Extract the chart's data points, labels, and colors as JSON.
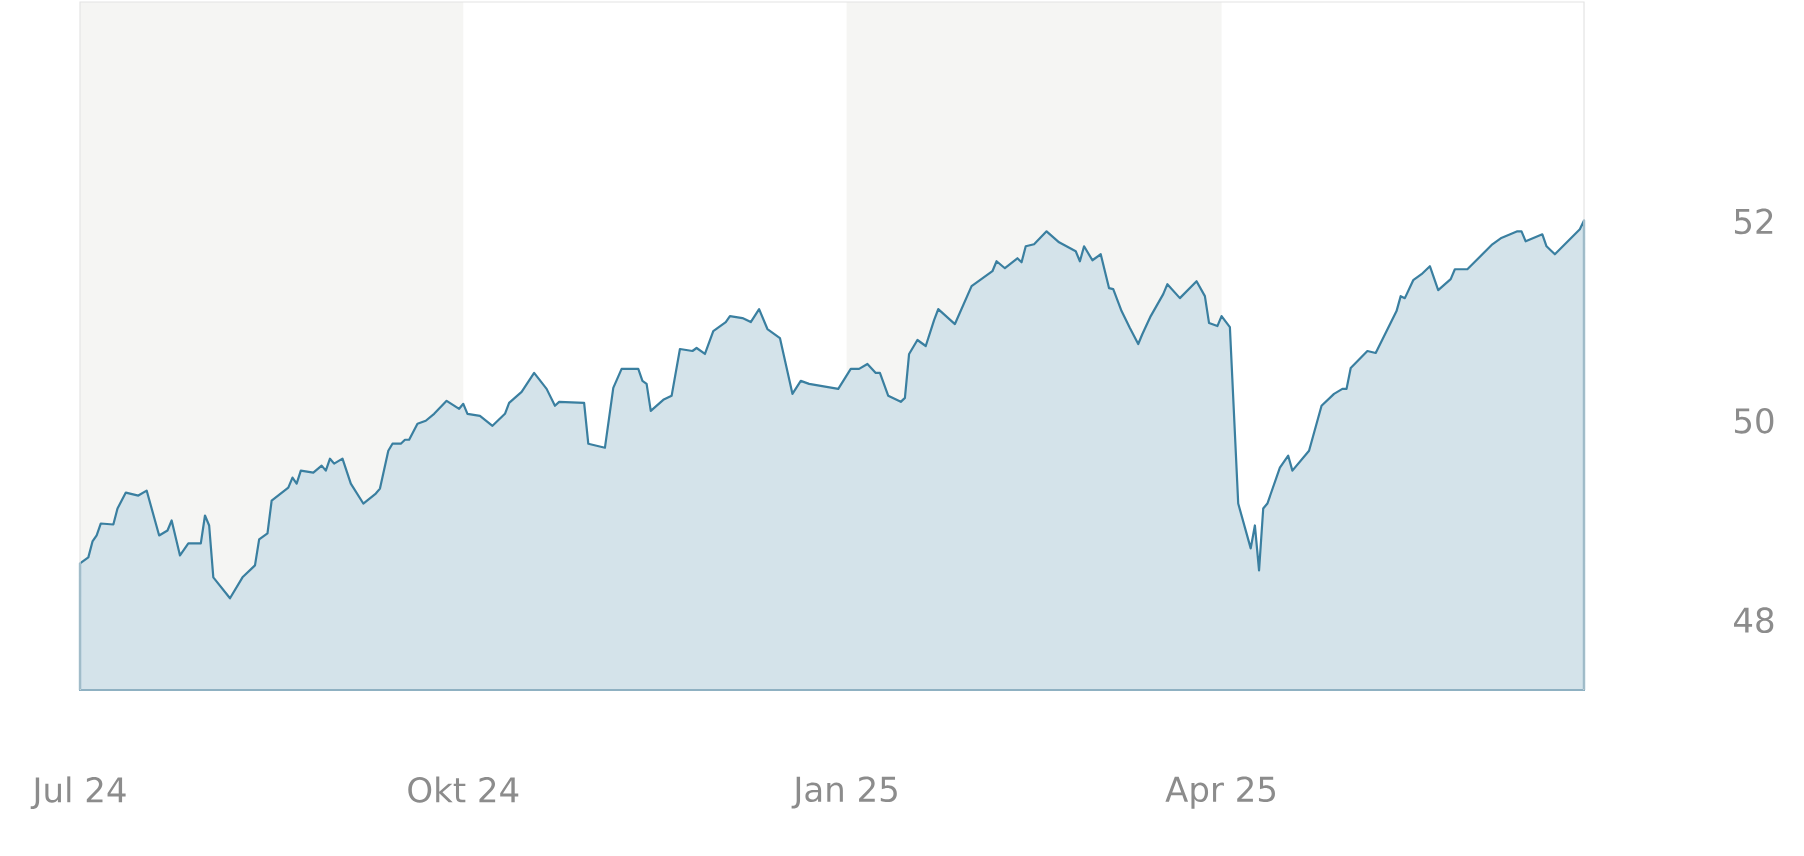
{
  "chart_data": {
    "type": "area",
    "color": "#3a7fa0",
    "x": [
      "2024-07-01",
      "2024-07-03",
      "2024-07-04",
      "2024-07-05",
      "2024-07-06",
      "2024-07-09",
      "2024-07-10",
      "2024-07-12",
      "2024-07-15",
      "2024-07-17",
      "2024-07-20",
      "2024-07-22",
      "2024-07-23",
      "2024-07-25",
      "2024-07-27",
      "2024-07-30",
      "2024-07-31",
      "2024-08-01",
      "2024-08-02",
      "2024-08-06",
      "2024-08-09",
      "2024-08-12",
      "2024-08-13",
      "2024-08-15",
      "2024-08-16",
      "2024-08-20",
      "2024-08-21",
      "2024-08-22",
      "2024-08-23",
      "2024-08-26",
      "2024-08-28",
      "2024-08-29",
      "2024-08-30",
      "2024-08-31",
      "2024-09-02",
      "2024-09-04",
      "2024-09-07",
      "2024-09-10",
      "2024-09-11",
      "2024-09-13",
      "2024-09-14",
      "2024-09-16",
      "2024-09-17",
      "2024-09-18",
      "2024-09-20",
      "2024-09-22",
      "2024-09-24",
      "2024-09-27",
      "2024-09-30",
      "2024-10-01",
      "2024-10-02",
      "2024-10-05",
      "2024-10-08",
      "2024-10-11",
      "2024-10-12",
      "2024-10-15",
      "2024-10-18",
      "2024-10-21",
      "2024-10-23",
      "2024-10-24",
      "2024-10-30",
      "2024-10-31",
      "2024-11-04",
      "2024-11-06",
      "2024-11-08",
      "2024-11-12",
      "2024-11-13",
      "2024-11-14",
      "2024-11-15",
      "2024-11-18",
      "2024-11-20",
      "2024-11-22",
      "2024-11-25",
      "2024-11-26",
      "2024-11-28",
      "2024-11-30",
      "2024-12-03",
      "2024-12-04",
      "2024-12-07",
      "2024-12-09",
      "2024-12-11",
      "2024-12-13",
      "2024-12-16",
      "2024-12-19",
      "2024-12-21",
      "2024-12-23",
      "2024-12-30",
      "2025-01-02",
      "2025-01-04",
      "2025-01-06",
      "2025-01-08",
      "2025-01-09",
      "2025-01-11",
      "2025-01-14",
      "2025-01-15",
      "2025-01-16",
      "2025-01-18",
      "2025-01-20",
      "2025-01-22",
      "2025-01-23",
      "2025-01-27",
      "2025-01-31",
      "2025-02-05",
      "2025-02-06",
      "2025-02-08",
      "2025-02-11",
      "2025-02-12",
      "2025-02-13",
      "2025-02-15",
      "2025-02-18",
      "2025-02-21",
      "2025-02-25",
      "2025-02-26",
      "2025-02-27",
      "2025-03-01",
      "2025-03-03",
      "2025-03-05",
      "2025-03-06",
      "2025-03-08",
      "2025-03-10",
      "2025-03-12",
      "2025-03-13",
      "2025-03-15",
      "2025-03-18",
      "2025-03-19",
      "2025-03-22",
      "2025-03-26",
      "2025-03-28",
      "2025-03-29",
      "2025-03-31",
      "2025-04-01",
      "2025-04-03",
      "2025-04-05",
      "2025-04-08",
      "2025-04-09",
      "2025-04-10",
      "2025-04-11",
      "2025-04-12",
      "2025-04-15",
      "2025-04-17",
      "2025-04-18",
      "2025-04-22",
      "2025-04-25",
      "2025-04-28",
      "2025-04-30",
      "2025-05-01",
      "2025-05-02",
      "2025-05-06",
      "2025-05-08",
      "2025-05-13",
      "2025-05-14",
      "2025-05-15",
      "2025-05-17",
      "2025-05-19",
      "2025-05-21",
      "2025-05-23",
      "2025-05-26",
      "2025-05-27",
      "2025-05-30",
      "2025-06-05",
      "2025-06-07",
      "2025-06-11",
      "2025-06-12",
      "2025-06-13",
      "2025-06-17",
      "2025-06-18",
      "2025-06-20",
      "2025-06-26",
      "2025-06-27"
    ],
    "values": [
      48.57,
      48.63,
      48.79,
      48.85,
      48.97,
      48.96,
      49.12,
      49.28,
      49.25,
      49.3,
      48.85,
      48.9,
      49.0,
      48.65,
      48.77,
      48.77,
      49.05,
      48.95,
      48.43,
      48.22,
      48.43,
      48.55,
      48.81,
      48.87,
      49.2,
      49.33,
      49.43,
      49.37,
      49.5,
      49.48,
      49.55,
      49.5,
      49.62,
      49.57,
      49.62,
      49.37,
      49.17,
      49.27,
      49.32,
      49.7,
      49.77,
      49.77,
      49.81,
      49.81,
      49.97,
      50.0,
      50.07,
      50.2,
      50.12,
      50.17,
      50.07,
      50.05,
      49.95,
      50.07,
      50.18,
      50.29,
      50.48,
      50.32,
      50.15,
      50.19,
      50.18,
      49.77,
      49.73,
      50.33,
      50.52,
      50.52,
      50.4,
      50.37,
      50.1,
      50.21,
      50.25,
      50.72,
      50.7,
      50.73,
      50.67,
      50.9,
      50.99,
      51.05,
      51.03,
      50.99,
      51.12,
      50.92,
      50.83,
      50.27,
      50.4,
      50.37,
      50.32,
      50.52,
      50.52,
      50.57,
      50.48,
      50.48,
      50.25,
      50.19,
      50.23,
      50.67,
      50.81,
      50.75,
      51.01,
      51.12,
      50.97,
      51.35,
      51.5,
      51.6,
      51.53,
      51.63,
      51.59,
      51.75,
      51.77,
      51.9,
      51.79,
      51.7,
      51.6,
      51.75,
      51.61,
      51.67,
      51.33,
      51.32,
      51.1,
      50.93,
      50.77,
      50.87,
      51.05,
      51.27,
      51.37,
      51.23,
      51.4,
      51.25,
      50.98,
      50.95,
      51.05,
      50.94,
      49.17,
      48.72,
      48.95,
      48.5,
      49.12,
      49.17,
      49.53,
      49.65,
      49.5,
      49.7,
      50.15,
      50.27,
      50.32,
      50.32,
      50.53,
      50.7,
      50.68,
      51.1,
      51.25,
      51.23,
      51.41,
      51.47,
      51.55,
      51.31,
      51.42,
      51.52,
      51.52,
      51.77,
      51.83,
      51.9,
      51.9,
      51.8,
      51.87,
      51.75,
      51.67,
      51.92,
      52.01
    ],
    "xlim": [
      "2024-07-01",
      "2025-06-27"
    ],
    "ylim": [
      47.3,
      54.2
    ],
    "xticks": [
      {
        "value": "2024-07-01",
        "label": "Jul 24"
      },
      {
        "value": "2024-10-01",
        "label": "Okt 24"
      },
      {
        "value": "2025-01-01",
        "label": "Jan 25"
      },
      {
        "value": "2025-04-01",
        "label": "Apr 25"
      }
    ],
    "yticks": [
      48,
      50,
      52
    ],
    "bands": [
      {
        "axis": "x",
        "from": "2024-07-01",
        "to": "2024-10-01",
        "color": "#f5f5f3"
      },
      {
        "axis": "x",
        "from": "2025-01-01",
        "to": "2025-04-01",
        "color": "#f5f5f3"
      }
    ]
  }
}
